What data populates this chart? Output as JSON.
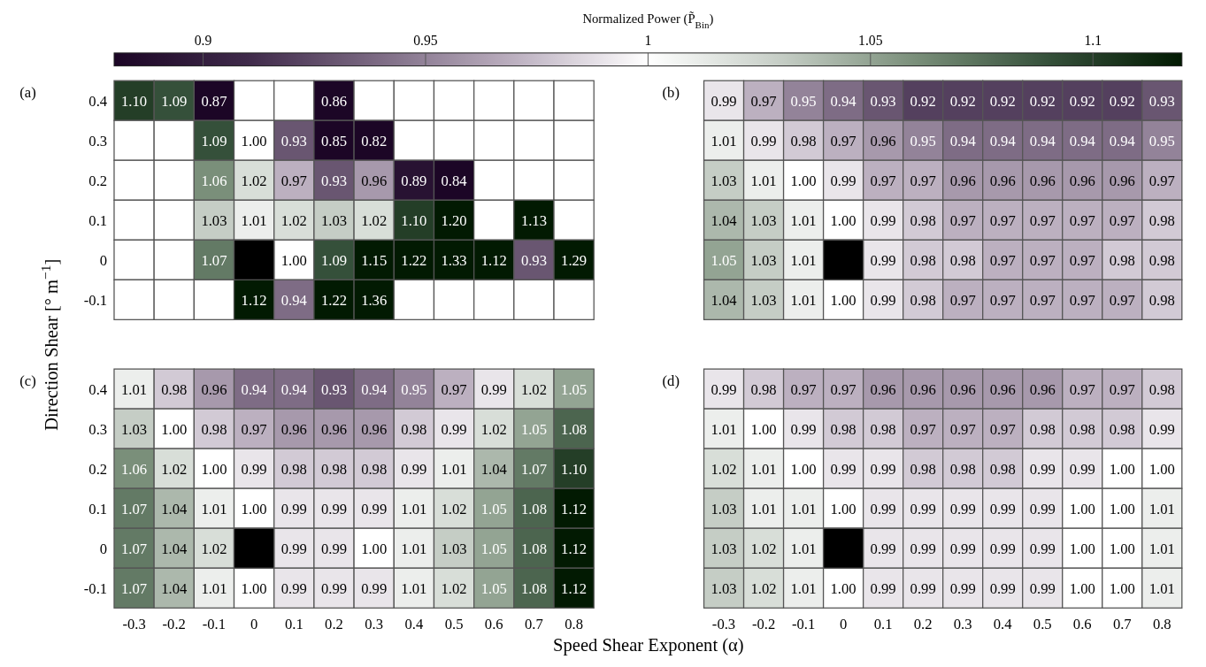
{
  "chart_data": [
    {
      "type": "heatmap",
      "title": "(a)",
      "ylabel": "Direction Shear [° m$^{−1}$]",
      "clabel": "Normalized Power (P̃$_{Bin}$)",
      "clim": [
        0.88,
        1.12
      ],
      "cticks": [
        0.9,
        0.95,
        1,
        1.05,
        1.1
      ],
      "tick_labels": "y",
      "categories": [
        "-0.3",
        "-0.2",
        "-0.1",
        "0",
        "0.1",
        "0.2",
        "0.3",
        "0.4",
        "0.5",
        "0.6",
        "0.7",
        "0.8"
      ],
      "y_categories": [
        "0.4",
        "0.3",
        "0.2",
        "0.1",
        "0",
        "-0.1"
      ],
      "cells": [
        [
          1.1,
          1.09,
          0.87,
          null,
          null,
          0.86,
          null,
          null,
          null,
          null,
          null,
          null
        ],
        [
          null,
          null,
          1.09,
          1.0,
          0.93,
          0.85,
          0.82,
          null,
          null,
          null,
          null,
          null
        ],
        [
          null,
          null,
          1.06,
          1.02,
          0.97,
          0.93,
          0.96,
          0.89,
          0.84,
          null,
          null,
          null
        ],
        [
          null,
          null,
          1.03,
          1.01,
          1.02,
          1.03,
          1.02,
          1.1,
          1.2,
          null,
          1.13,
          null
        ],
        [
          null,
          null,
          1.07,
          null,
          1.0,
          1.09,
          1.15,
          1.22,
          1.33,
          1.12,
          0.93,
          1.29
        ],
        [
          null,
          null,
          null,
          1.12,
          0.94,
          1.22,
          1.36,
          null,
          null,
          null,
          null,
          null
        ]
      ],
      "cell_labels": [
        [
          "1.10",
          "1.09",
          "0.87",
          null,
          null,
          "0.86",
          null,
          null,
          null,
          null,
          null,
          null
        ],
        [
          null,
          null,
          "1.09",
          "1.00",
          "0.93",
          "0.85",
          "0.82",
          null,
          null,
          null,
          null,
          null
        ],
        [
          null,
          null,
          "1.06",
          "1.02",
          "0.97",
          "0.93",
          "0.96",
          "0.89",
          "0.84",
          null,
          null,
          null
        ],
        [
          null,
          null,
          "1.03",
          "1.01",
          "1.02",
          "1.03",
          "1.02",
          "1.10",
          "1.20",
          null,
          "1.13",
          null
        ],
        [
          null,
          null,
          "1.07",
          null,
          "1.00",
          "1.09",
          "1.15",
          "1.22",
          "1.33",
          "1.12",
          "0.93",
          "1.29"
        ],
        [
          null,
          null,
          null,
          "1.12",
          "0.94",
          "1.22",
          "1.36",
          null,
          null,
          null,
          null,
          null
        ]
      ]
    },
    {
      "type": "heatmap",
      "title": "(b)",
      "tick_labels": false,
      "categories": [
        "-0.3",
        "-0.2",
        "-0.1",
        "0",
        "0.1",
        "0.2",
        "0.3",
        "0.4",
        "0.5",
        "0.6",
        "0.7",
        "0.8"
      ],
      "y_categories": [
        "0.4",
        "0.3",
        "0.2",
        "0.1",
        "0",
        "-0.1"
      ],
      "cells": [
        [
          0.99,
          0.97,
          0.95,
          0.94,
          0.93,
          0.92,
          0.92,
          0.92,
          0.92,
          0.92,
          0.92,
          0.93
        ],
        [
          1.01,
          0.99,
          0.98,
          0.97,
          0.96,
          0.95,
          0.94,
          0.94,
          0.94,
          0.94,
          0.94,
          0.95
        ],
        [
          1.03,
          1.01,
          1.0,
          0.99,
          0.97,
          0.97,
          0.96,
          0.96,
          0.96,
          0.96,
          0.96,
          0.97
        ],
        [
          1.04,
          1.03,
          1.01,
          1.0,
          0.99,
          0.98,
          0.97,
          0.97,
          0.97,
          0.97,
          0.97,
          0.98
        ],
        [
          1.05,
          1.03,
          1.01,
          null,
          0.99,
          0.98,
          0.98,
          0.97,
          0.97,
          0.97,
          0.98,
          0.98
        ],
        [
          1.04,
          1.03,
          1.01,
          1.0,
          0.99,
          0.98,
          0.97,
          0.97,
          0.97,
          0.97,
          0.97,
          0.98
        ]
      ],
      "cell_labels": [
        [
          "0.99",
          "0.97",
          "0.95",
          "0.94",
          "0.93",
          "0.92",
          "0.92",
          "0.92",
          "0.92",
          "0.92",
          "0.92",
          "0.93"
        ],
        [
          "1.01",
          "0.99",
          "0.98",
          "0.97",
          "0.96",
          "0.95",
          "0.94",
          "0.94",
          "0.94",
          "0.94",
          "0.94",
          "0.95"
        ],
        [
          "1.03",
          "1.01",
          "1.00",
          "0.99",
          "0.97",
          "0.97",
          "0.96",
          "0.96",
          "0.96",
          "0.96",
          "0.96",
          "0.97"
        ],
        [
          "1.04",
          "1.03",
          "1.01",
          "1.00",
          "0.99",
          "0.98",
          "0.97",
          "0.97",
          "0.97",
          "0.97",
          "0.97",
          "0.98"
        ],
        [
          "1.05",
          "1.03",
          "1.01",
          null,
          "0.99",
          "0.98",
          "0.98",
          "0.97",
          "0.97",
          "0.97",
          "0.98",
          "0.98"
        ],
        [
          "1.04",
          "1.03",
          "1.01",
          "1.00",
          "0.99",
          "0.98",
          "0.97",
          "0.97",
          "0.97",
          "0.97",
          "0.97",
          "0.98"
        ]
      ]
    },
    {
      "type": "heatmap",
      "title": "(c)",
      "xlabel": "Speed Shear Exponent (α)",
      "categories": [
        "-0.3",
        "-0.2",
        "-0.1",
        "0",
        "0.1",
        "0.2",
        "0.3",
        "0.4",
        "0.5",
        "0.6",
        "0.7",
        "0.8"
      ],
      "y_categories": [
        "0.4",
        "0.3",
        "0.2",
        "0.1",
        "0",
        "-0.1"
      ],
      "cells": [
        [
          1.01,
          0.98,
          0.96,
          0.94,
          0.94,
          0.93,
          0.94,
          0.95,
          0.97,
          0.99,
          1.02,
          1.05
        ],
        [
          1.03,
          1.0,
          0.98,
          0.97,
          0.96,
          0.96,
          0.96,
          0.98,
          0.99,
          1.02,
          1.05,
          1.08
        ],
        [
          1.06,
          1.02,
          1.0,
          0.99,
          0.98,
          0.98,
          0.98,
          0.99,
          1.01,
          1.04,
          1.07,
          1.1
        ],
        [
          1.07,
          1.04,
          1.01,
          1.0,
          0.99,
          0.99,
          0.99,
          1.01,
          1.02,
          1.05,
          1.08,
          1.12
        ],
        [
          1.07,
          1.04,
          1.02,
          null,
          0.99,
          0.99,
          1.0,
          1.01,
          1.03,
          1.05,
          1.08,
          1.12
        ],
        [
          1.07,
          1.04,
          1.01,
          1.0,
          0.99,
          0.99,
          0.99,
          1.01,
          1.02,
          1.05,
          1.08,
          1.12
        ]
      ],
      "cell_labels": [
        [
          "1.01",
          "0.98",
          "0.96",
          "0.94",
          "0.94",
          "0.93",
          "0.94",
          "0.95",
          "0.97",
          "0.99",
          "1.02",
          "1.05"
        ],
        [
          "1.03",
          "1.00",
          "0.98",
          "0.97",
          "0.96",
          "0.96",
          "0.96",
          "0.98",
          "0.99",
          "1.02",
          "1.05",
          "1.08"
        ],
        [
          "1.06",
          "1.02",
          "1.00",
          "0.99",
          "0.98",
          "0.98",
          "0.98",
          "0.99",
          "1.01",
          "1.04",
          "1.07",
          "1.10"
        ],
        [
          "1.07",
          "1.04",
          "1.01",
          "1.00",
          "0.99",
          "0.99",
          "0.99",
          "1.01",
          "1.02",
          "1.05",
          "1.08",
          "1.12"
        ],
        [
          "1.07",
          "1.04",
          "1.02",
          null,
          "0.99",
          "0.99",
          "1.00",
          "1.01",
          "1.03",
          "1.05",
          "1.08",
          "1.12"
        ],
        [
          "1.07",
          "1.04",
          "1.01",
          "1.00",
          "0.99",
          "0.99",
          "0.99",
          "1.01",
          "1.02",
          "1.05",
          "1.08",
          "1.12"
        ]
      ]
    },
    {
      "type": "heatmap",
      "title": "(d)",
      "tick_labels": "x",
      "categories": [
        "-0.3",
        "-0.2",
        "-0.1",
        "0",
        "0.1",
        "0.2",
        "0.3",
        "0.4",
        "0.5",
        "0.6",
        "0.7",
        "0.8"
      ],
      "y_categories": [
        "0.4",
        "0.3",
        "0.2",
        "0.1",
        "0",
        "-0.1"
      ],
      "cells": [
        [
          0.99,
          0.98,
          0.97,
          0.97,
          0.96,
          0.96,
          0.96,
          0.96,
          0.96,
          0.97,
          0.97,
          0.98
        ],
        [
          1.01,
          1.0,
          0.99,
          0.98,
          0.98,
          0.97,
          0.97,
          0.97,
          0.98,
          0.98,
          0.98,
          0.99
        ],
        [
          1.02,
          1.01,
          1.0,
          0.99,
          0.99,
          0.98,
          0.98,
          0.98,
          0.99,
          0.99,
          1.0,
          1.0
        ],
        [
          1.03,
          1.01,
          1.01,
          1.0,
          0.99,
          0.99,
          0.99,
          0.99,
          0.99,
          1.0,
          1.0,
          1.01
        ],
        [
          1.03,
          1.02,
          1.01,
          null,
          0.99,
          0.99,
          0.99,
          0.99,
          0.99,
          1.0,
          1.0,
          1.01
        ],
        [
          1.03,
          1.02,
          1.01,
          1.0,
          0.99,
          0.99,
          0.99,
          0.99,
          0.99,
          1.0,
          1.0,
          1.01
        ]
      ],
      "cell_labels": [
        [
          "0.99",
          "0.98",
          "0.97",
          "0.97",
          "0.96",
          "0.96",
          "0.96",
          "0.96",
          "0.96",
          "0.97",
          "0.97",
          "0.98"
        ],
        [
          "1.01",
          "1.00",
          "0.99",
          "0.98",
          "0.98",
          "0.97",
          "0.97",
          "0.97",
          "0.98",
          "0.98",
          "0.98",
          "0.99"
        ],
        [
          "1.02",
          "1.01",
          "1.00",
          "0.99",
          "0.99",
          "0.98",
          "0.98",
          "0.98",
          "0.99",
          "0.99",
          "1.00",
          "1.00"
        ],
        [
          "1.03",
          "1.01",
          "1.01",
          "1.00",
          "0.99",
          "0.99",
          "0.99",
          "0.99",
          "0.99",
          "1.00",
          "1.00",
          "1.01"
        ],
        [
          "1.03",
          "1.02",
          "1.01",
          null,
          "0.99",
          "0.99",
          "0.99",
          "0.99",
          "0.99",
          "1.00",
          "1.00",
          "1.01"
        ],
        [
          "1.03",
          "1.02",
          "1.01",
          "1.00",
          "0.99",
          "0.99",
          "0.99",
          "0.99",
          "0.99",
          "1.00",
          "1.00",
          "1.01"
        ]
      ]
    }
  ]
}
